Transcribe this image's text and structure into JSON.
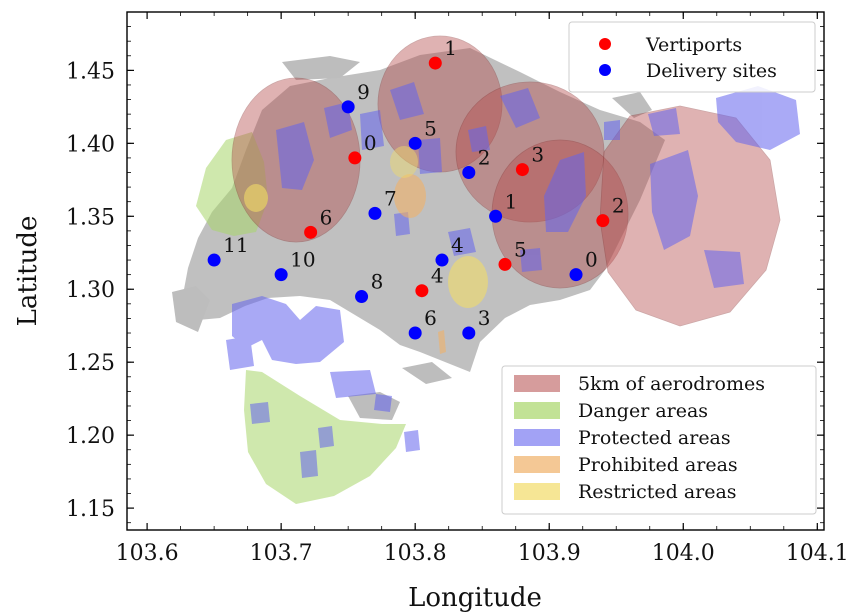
{
  "chart_data": {
    "type": "scatter",
    "xlabel": "Longitude",
    "ylabel": "Latitude",
    "xlim": [
      103.585,
      104.105
    ],
    "ylim": [
      1.135,
      1.49
    ],
    "x_ticks": [
      "103.6",
      "103.7",
      "103.8",
      "103.9",
      "104.0",
      "104.1"
    ],
    "y_ticks": [
      "1.15",
      "1.20",
      "1.25",
      "1.30",
      "1.35",
      "1.40",
      "1.45"
    ],
    "grid": false,
    "legends": [
      {
        "placement": "top-right",
        "entries": [
          {
            "label": "Vertiports",
            "kind": "marker",
            "color": "#ff0000"
          },
          {
            "label": "Delivery sites",
            "kind": "marker",
            "color": "#0000ff"
          }
        ]
      },
      {
        "placement": "lower-right",
        "entries": [
          {
            "label": "5km of aerodromes",
            "kind": "patch",
            "color": "#b44a4a"
          },
          {
            "label": "Danger areas",
            "kind": "patch",
            "color": "#a8d66a"
          },
          {
            "label": "Protected areas",
            "kind": "patch",
            "color": "#6464ee"
          },
          {
            "label": "Prohibited areas",
            "kind": "patch",
            "color": "#f0b068"
          },
          {
            "label": "Restricted areas",
            "kind": "patch",
            "color": "#f2dc68"
          }
        ]
      }
    ],
    "series": [
      {
        "name": "Vertiports",
        "color": "#ff0000",
        "points": [
          {
            "label": "0",
            "x": 103.755,
            "y": 1.39
          },
          {
            "label": "1",
            "x": 103.815,
            "y": 1.455
          },
          {
            "label": "2",
            "x": 103.94,
            "y": 1.347
          },
          {
            "label": "3",
            "x": 103.88,
            "y": 1.382
          },
          {
            "label": "4",
            "x": 103.805,
            "y": 1.299
          },
          {
            "label": "5",
            "x": 103.867,
            "y": 1.317
          },
          {
            "label": "6",
            "x": 103.722,
            "y": 1.339
          }
        ]
      },
      {
        "name": "Delivery sites",
        "color": "#0000ff",
        "points": [
          {
            "label": "0",
            "x": 103.92,
            "y": 1.31
          },
          {
            "label": "1",
            "x": 103.86,
            "y": 1.35
          },
          {
            "label": "2",
            "x": 103.84,
            "y": 1.38
          },
          {
            "label": "3",
            "x": 103.84,
            "y": 1.27
          },
          {
            "label": "4",
            "x": 103.82,
            "y": 1.32
          },
          {
            "label": "5",
            "x": 103.8,
            "y": 1.4
          },
          {
            "label": "6",
            "x": 103.8,
            "y": 1.27
          },
          {
            "label": "7",
            "x": 103.77,
            "y": 1.352
          },
          {
            "label": "8",
            "x": 103.76,
            "y": 1.295
          },
          {
            "label": "9",
            "x": 103.75,
            "y": 1.425
          },
          {
            "label": "10",
            "x": 103.7,
            "y": 1.31
          },
          {
            "label": "11",
            "x": 103.65,
            "y": 1.32
          }
        ]
      }
    ],
    "annotations": {
      "island_color": "#bdbdbd",
      "aerodrome_zones_color": "#b44a4a",
      "danger_areas_color": "#a8d66a",
      "protected_areas_color": "#6464ee",
      "prohibited_areas_color": "#f0b068",
      "restricted_areas_color": "#f2dc68"
    }
  }
}
